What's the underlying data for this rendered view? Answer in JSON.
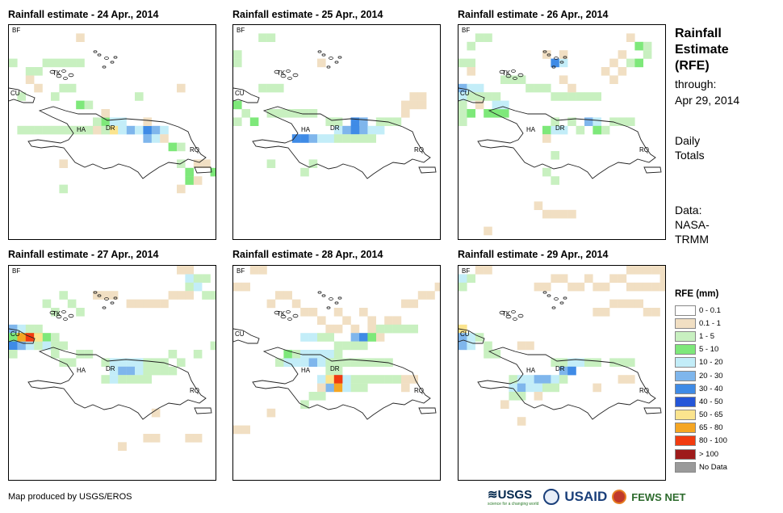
{
  "panels": [
    {
      "title": "Rainfall estimate - 24 Apr., 2014",
      "labels": {
        "bf": "BF",
        "tk": "TK",
        "cu": "CU",
        "ha": "HA",
        "dr": "DR",
        "rq": "RQ"
      }
    },
    {
      "title": "Rainfall estimate - 25 Apr., 2014",
      "labels": {
        "bf": "BF",
        "tk": "TK",
        "cu": "CU",
        "ha": "HA",
        "dr": "DR",
        "rq": "RQ"
      }
    },
    {
      "title": "Rainfall estimate - 26 Apr., 2014",
      "labels": {
        "bf": "BF",
        "tk": "TK",
        "cu": "CU",
        "ha": "HA",
        "dr": "DR",
        "rq": "RQ"
      }
    },
    {
      "title": "Rainfall estimate - 27 Apr., 2014",
      "labels": {
        "bf": "BF",
        "tk": "TK",
        "cu": "CU",
        "ha": "HA",
        "dr": "DR",
        "rq": "RQ"
      }
    },
    {
      "title": "Rainfall estimate - 28 Apr., 2014",
      "labels": {
        "bf": "BF",
        "tk": "TK",
        "cu": "CU",
        "ha": "HA",
        "dr": "DR",
        "rq": "RQ"
      }
    },
    {
      "title": "Rainfall estimate - 29 Apr., 2014",
      "labels": {
        "bf": "BF",
        "tk": "TK",
        "cu": "CU",
        "ha": "HA",
        "dr": "DR",
        "rq": "RQ"
      }
    }
  ],
  "side": {
    "title_line1": "Rainfall",
    "title_line2": "Estimate",
    "title_line3": "(RFE)",
    "through_label": "through:",
    "through_date": "Apr 29, 2014",
    "totals_line1": "Daily",
    "totals_line2": "Totals",
    "data_line1": "Data:",
    "data_line2": "NASA-",
    "data_line3": "TRMM"
  },
  "legend": {
    "title": "RFE (mm)",
    "items": [
      {
        "label": "0 - 0.1",
        "color": "#ffffff"
      },
      {
        "label": "0.1 - 1",
        "color": "#f1dfc3"
      },
      {
        "label": "1 - 5",
        "color": "#c8f0c0"
      },
      {
        "label": "5 - 10",
        "color": "#7ee87a"
      },
      {
        "label": "10 - 20",
        "color": "#c3edf8"
      },
      {
        "label": "20 - 30",
        "color": "#7fb6ec"
      },
      {
        "label": "30 - 40",
        "color": "#3f8be6"
      },
      {
        "label": "40 - 50",
        "color": "#2456d8"
      },
      {
        "label": "50 - 65",
        "color": "#fbe48e"
      },
      {
        "label": "65 - 80",
        "color": "#f5a623"
      },
      {
        "label": "80 - 100",
        "color": "#f23b0f"
      },
      {
        "label": "> 100",
        "color": "#9e1b1b"
      },
      {
        "label": "No Data",
        "color": "#9a9a9a"
      }
    ]
  },
  "footer": {
    "credit": "Map produced by USGS/EROS",
    "usgs": "USGS",
    "usgs_tagline": "science for a changing world",
    "usaid": "USAID",
    "fews": "FEWS NET"
  }
}
